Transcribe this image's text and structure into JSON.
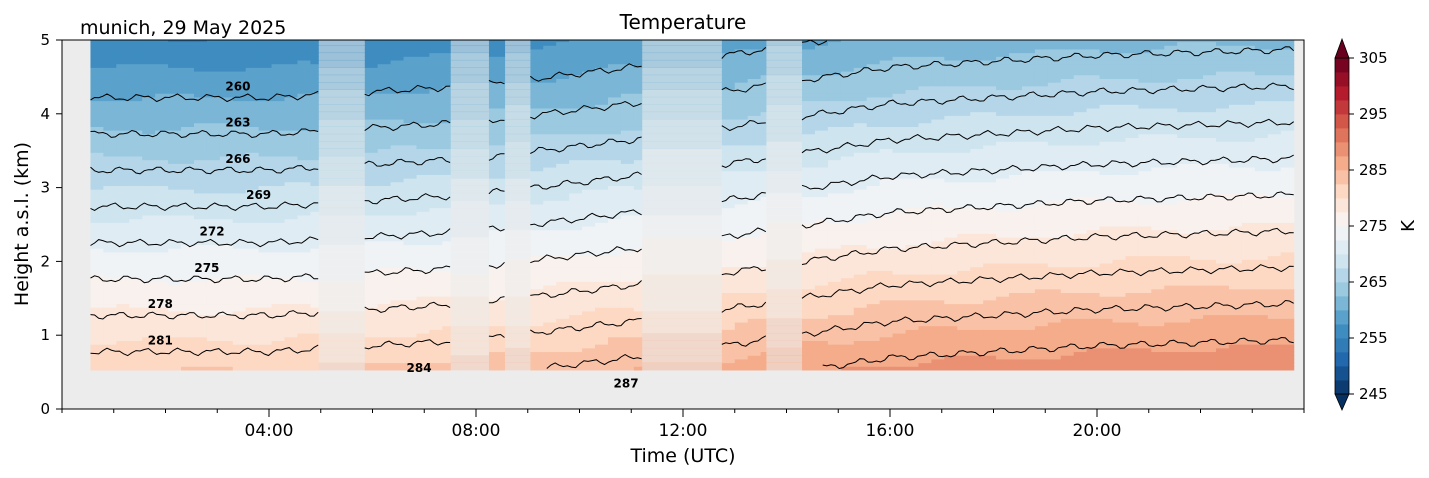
{
  "chart_data": {
    "type": "heatmap",
    "title": "Temperature",
    "subtitle": "munich, 29 May 2025",
    "xlabel": "Time (UTC)",
    "ylabel": "Height a.s.l. (km)",
    "xlim": [
      0,
      24
    ],
    "ylim": [
      0,
      5
    ],
    "x_ticks": [
      4,
      8,
      12,
      16,
      20
    ],
    "x_tick_labels": [
      "04:00",
      "08:00",
      "12:00",
      "16:00",
      "20:00"
    ],
    "y_ticks": [
      0,
      1,
      2,
      3,
      4,
      5
    ],
    "y_tick_labels": [
      "0",
      "1",
      "2",
      "3",
      "4",
      "5"
    ],
    "ground_height_km": 0.53,
    "grid": false,
    "colorbar": {
      "label": "K",
      "range": [
        245,
        305
      ],
      "ticks": [
        245,
        255,
        265,
        275,
        285,
        295,
        305
      ],
      "tick_labels": [
        "245",
        "255",
        "265",
        "275",
        "285",
        "295",
        "305"
      ],
      "colormap": "RdBu_r",
      "extend": "both"
    },
    "contour_levels": [
      260,
      263,
      266,
      269,
      272,
      275,
      278,
      281,
      284,
      287
    ],
    "contour_labels": [
      "260",
      "263",
      "266",
      "269",
      "272",
      "275",
      "278",
      "281",
      "284",
      "287"
    ],
    "surface_temperature_K": {
      "x": [
        0,
        4,
        8,
        12,
        16,
        20,
        24
      ],
      "values": [
        282.5,
        282.5,
        283.5,
        285.5,
        288,
        289,
        289.5
      ]
    },
    "lapse_rate_K_per_km": 6.1,
    "data_segments_utc": [
      [
        0.55,
        4.95
      ],
      [
        5.85,
        7.5
      ],
      [
        8.25,
        8.55
      ],
      [
        9.05,
        11.2
      ],
      [
        12.75,
        13.6
      ],
      [
        14.3,
        23.8
      ]
    ],
    "gap_segments_utc": [
      [
        4.95,
        5.85
      ],
      [
        7.5,
        8.25
      ],
      [
        8.55,
        9.05
      ],
      [
        11.2,
        12.75
      ],
      [
        13.6,
        14.3
      ]
    ]
  }
}
